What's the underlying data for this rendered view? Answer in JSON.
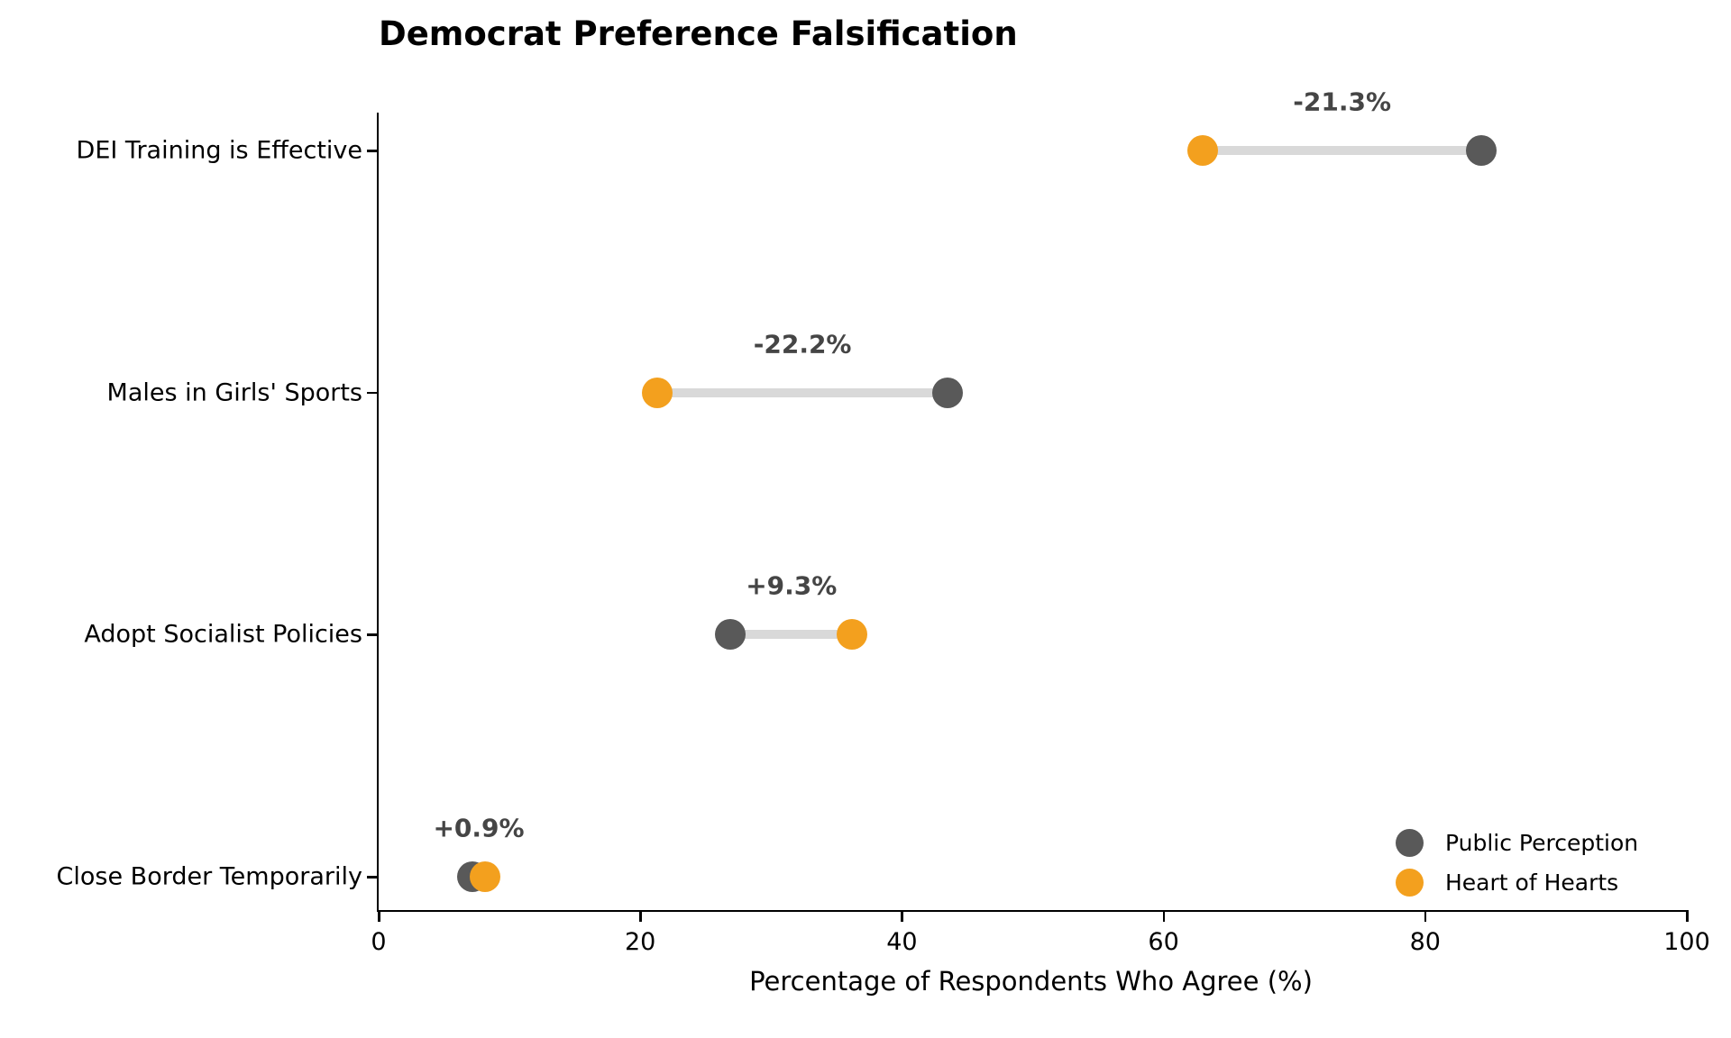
{
  "title": "Democrat Preference Falsification",
  "colors": {
    "public": "#595959",
    "heart": "#F3A01E",
    "connector": "#D9D9D9",
    "diff_label": "#454545",
    "axis": "#000000",
    "background": "#ffffff"
  },
  "chart_data": {
    "type": "dumbbell",
    "title": "Democrat Preference Falsification",
    "xlabel": "Percentage of Respondents Who Agree (%)",
    "ylabel": "",
    "xlim": [
      0,
      100
    ],
    "xticks": [
      0,
      20,
      40,
      60,
      80,
      100
    ],
    "grid": false,
    "categories": [
      "DEI Training is Effective",
      "Males in Girls' Sports",
      "Adopt Socialist Policies",
      "Close Border Temporarily"
    ],
    "series": [
      {
        "name": "Public Perception",
        "color": "#595959",
        "values": [
          84.3,
          43.5,
          26.9,
          7.2
        ]
      },
      {
        "name": "Heart of Hearts",
        "color": "#F3A01E",
        "values": [
          63.0,
          21.3,
          36.2,
          8.1
        ]
      }
    ],
    "diff_labels": [
      "-21.3%",
      "-22.2%",
      "+9.3%",
      "+0.9%"
    ],
    "legend_position": "lower right"
  }
}
